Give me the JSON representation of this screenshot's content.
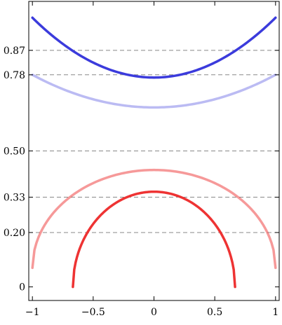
{
  "chart_data": {
    "type": "line",
    "title": "",
    "xlabel": "",
    "ylabel": "",
    "xlim": [
      -1.03,
      1.03
    ],
    "ylim": [
      -0.05,
      1.05
    ],
    "x_ticks": [
      {
        "value": -1,
        "label": "−1"
      },
      {
        "value": -0.5,
        "label": "−0.5"
      },
      {
        "value": 0,
        "label": "0"
      },
      {
        "value": 0.5,
        "label": "0.5"
      },
      {
        "value": 1,
        "label": "1"
      }
    ],
    "y_ticks": [
      {
        "value": 0,
        "label": "0"
      },
      {
        "value": 0.2,
        "label": "0.20"
      },
      {
        "value": 0.33,
        "label": "0.33"
      },
      {
        "value": 0.5,
        "label": "0.50"
      },
      {
        "value": 0.78,
        "label": "0.78"
      },
      {
        "value": 0.87,
        "label": "0.87"
      }
    ],
    "reference_lines": [
      0.87,
      0.78,
      0.5,
      0.33,
      0.2
    ],
    "grid": false,
    "series": [
      {
        "color": "#3b3bdc",
        "opacity": 1.0,
        "shape": "parabola",
        "x": [
          -1,
          0,
          1
        ],
        "y": [
          0.99,
          0.77,
          0.99
        ]
      },
      {
        "color": "#3b3bdc",
        "opacity": 0.35,
        "shape": "parabola",
        "x": [
          -1,
          0,
          1
        ],
        "y": [
          0.78,
          0.66,
          0.78
        ]
      },
      {
        "color": "#ee3333",
        "opacity": 0.5,
        "shape": "arc",
        "x": [
          -1,
          0,
          1
        ],
        "y": [
          0.07,
          0.43,
          0.07
        ]
      },
      {
        "color": "#ee3333",
        "opacity": 1.0,
        "shape": "arc",
        "x": [
          -0.667,
          0,
          0.667
        ],
        "y": [
          0,
          0.35,
          0
        ]
      }
    ]
  }
}
